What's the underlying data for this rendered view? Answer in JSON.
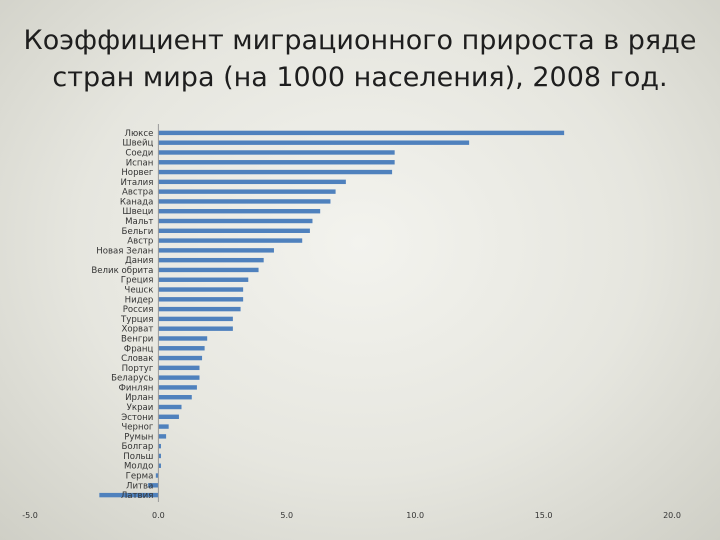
{
  "title_lines": [
    "Коэффициент миграционного прироста в ряде",
    "стран мира (на 1000 населения), 2008 год."
  ],
  "chart_data": {
    "type": "bar",
    "orientation": "horizontal",
    "title": "Коэффициент миграционного прироста в ряде стран мира (на 1000 населения), 2008 год.",
    "xlim": [
      -5,
      20
    ],
    "xticks": [
      -5,
      0,
      5,
      10,
      15,
      20
    ],
    "xtick_labels": [
      "-5.0",
      "0.0",
      "5.0",
      "10.0",
      "15.0",
      "20.0"
    ],
    "bar_color": "#4f81bd",
    "categories": [
      "Люксе",
      "Швейц",
      "Соеди",
      "Испан",
      "Норвег",
      "Италия",
      "Австра",
      "Канада",
      "Швеци",
      "Мальт",
      "Бельги",
      "Австр",
      "Новая Зелан",
      "Дания",
      "Велик обрита",
      "Греция",
      "Чешск",
      "Нидер",
      "Россия",
      "Турция",
      "Хорват",
      "Венгри",
      "Франц",
      "Словак",
      "Португ",
      "Беларусь",
      "Финлян",
      "Ирлан",
      "Украи",
      "Эстони",
      "Черног",
      "Румын",
      "Болгар",
      "Польш",
      "Молдо",
      "Герма",
      "Литва",
      "Латвия"
    ],
    "values": [
      15.8,
      12.1,
      9.2,
      9.2,
      9.1,
      7.3,
      6.9,
      6.7,
      6.3,
      6.0,
      5.9,
      5.6,
      4.5,
      4.1,
      3.9,
      3.5,
      3.3,
      3.3,
      3.2,
      2.9,
      2.9,
      1.9,
      1.8,
      1.7,
      1.6,
      1.6,
      1.5,
      1.3,
      0.9,
      0.8,
      0.4,
      0.3,
      0.1,
      0.1,
      0.1,
      -0.1,
      -0.4,
      -2.3
    ]
  }
}
